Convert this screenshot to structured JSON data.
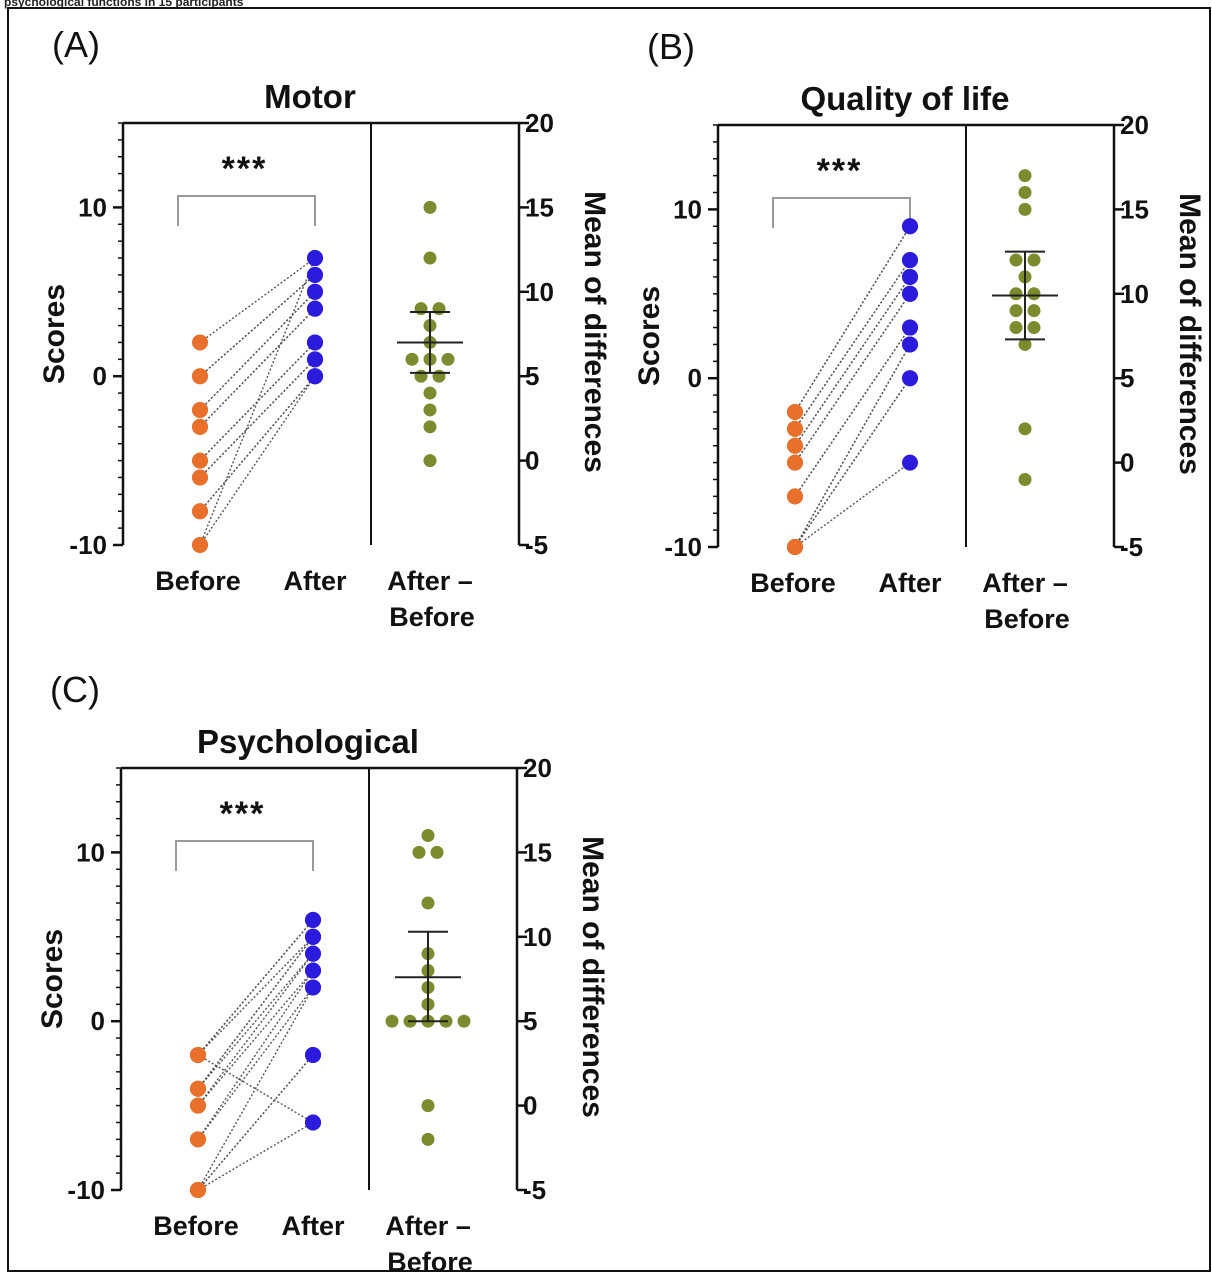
{
  "caption_fragment": "psychological functions in 15 participants",
  "colors": {
    "before": "#e8702a",
    "after": "#2b1bdc",
    "diff": "#7d8a2e",
    "pairline": "#555555",
    "axis": "#111111",
    "bracket": "#9a9a9a"
  },
  "x_labels": {
    "before": "Before",
    "after": "After",
    "diff_line1": "After –",
    "diff_line2": "Before"
  },
  "left_axis_label": "Scores",
  "right_axis_label": "Mean of differences",
  "significance": "***",
  "chart_data": [
    {
      "type": "scatter",
      "panel_label": "(A)",
      "title": "Motor",
      "ylabel": "Scores",
      "y2label": "Mean of differences",
      "ylim": [
        -10,
        15
      ],
      "yticks": [
        -10,
        0,
        10
      ],
      "y2lim": [
        -5,
        20
      ],
      "y2ticks": [
        -5,
        0,
        5,
        10,
        15,
        20
      ],
      "categories": [
        "Before",
        "After",
        "After – Before"
      ],
      "before": [
        2,
        0,
        -2,
        -3,
        -5,
        -6,
        -8,
        -10,
        0,
        -2,
        -3,
        -5,
        -6,
        -8,
        -10
      ],
      "after": [
        7,
        6,
        5,
        4,
        2,
        1,
        0,
        7,
        6,
        5,
        4,
        2,
        1,
        0,
        0
      ],
      "differences": [
        15,
        12,
        9,
        9,
        8,
        7,
        6,
        6,
        6,
        5,
        5,
        4,
        3,
        2,
        0
      ],
      "mean_difference": 7,
      "ci": [
        5.2,
        8.8
      ],
      "significance": "***"
    },
    {
      "type": "scatter",
      "panel_label": "(B)",
      "title": "Quality of life",
      "ylabel": "Scores",
      "y2label": "Mean of differences",
      "ylim": [
        -10,
        15
      ],
      "yticks": [
        -10,
        0,
        10
      ],
      "y2lim": [
        -5,
        20
      ],
      "y2ticks": [
        -5,
        0,
        5,
        10,
        15,
        20
      ],
      "categories": [
        "Before",
        "After",
        "After – Before"
      ],
      "before": [
        -2,
        -3,
        -4,
        -5,
        -7,
        -10,
        -10,
        -10,
        -2,
        -3,
        -4,
        -5,
        -7,
        -10,
        -10
      ],
      "after": [
        9,
        7,
        6,
        5,
        3,
        2,
        0,
        -5,
        9,
        7,
        6,
        5,
        3,
        2,
        0
      ],
      "differences": [
        17,
        16,
        15,
        12,
        12,
        11,
        10,
        10,
        9,
        9,
        8,
        8,
        7,
        2,
        -1
      ],
      "mean_difference": 9.9,
      "ci": [
        7.3,
        12.5
      ],
      "significance": "***"
    },
    {
      "type": "scatter",
      "panel_label": "(C)",
      "title": "Psychological",
      "ylabel": "Scores",
      "y2label": "Mean of differences",
      "ylim": [
        -10,
        15
      ],
      "yticks": [
        -10,
        0,
        10
      ],
      "y2lim": [
        -5,
        20
      ],
      "y2ticks": [
        -5,
        0,
        5,
        10,
        15,
        20
      ],
      "categories": [
        "Before",
        "After",
        "After – Before"
      ],
      "before": [
        -2,
        -2,
        -4,
        -5,
        -7,
        -10,
        -10,
        -2,
        -4,
        -5,
        -7,
        -10,
        -10,
        -2,
        -4
      ],
      "after": [
        6,
        5,
        4,
        3,
        2,
        -2,
        -6,
        6,
        5,
        4,
        3,
        2,
        -2,
        -6,
        5
      ],
      "differences": [
        16,
        15,
        15,
        12,
        9,
        8,
        7,
        6,
        5,
        5,
        5,
        5,
        5,
        0,
        -2
      ],
      "mean_difference": 7.6,
      "ci": [
        5,
        10.3
      ],
      "significance": "***"
    }
  ]
}
